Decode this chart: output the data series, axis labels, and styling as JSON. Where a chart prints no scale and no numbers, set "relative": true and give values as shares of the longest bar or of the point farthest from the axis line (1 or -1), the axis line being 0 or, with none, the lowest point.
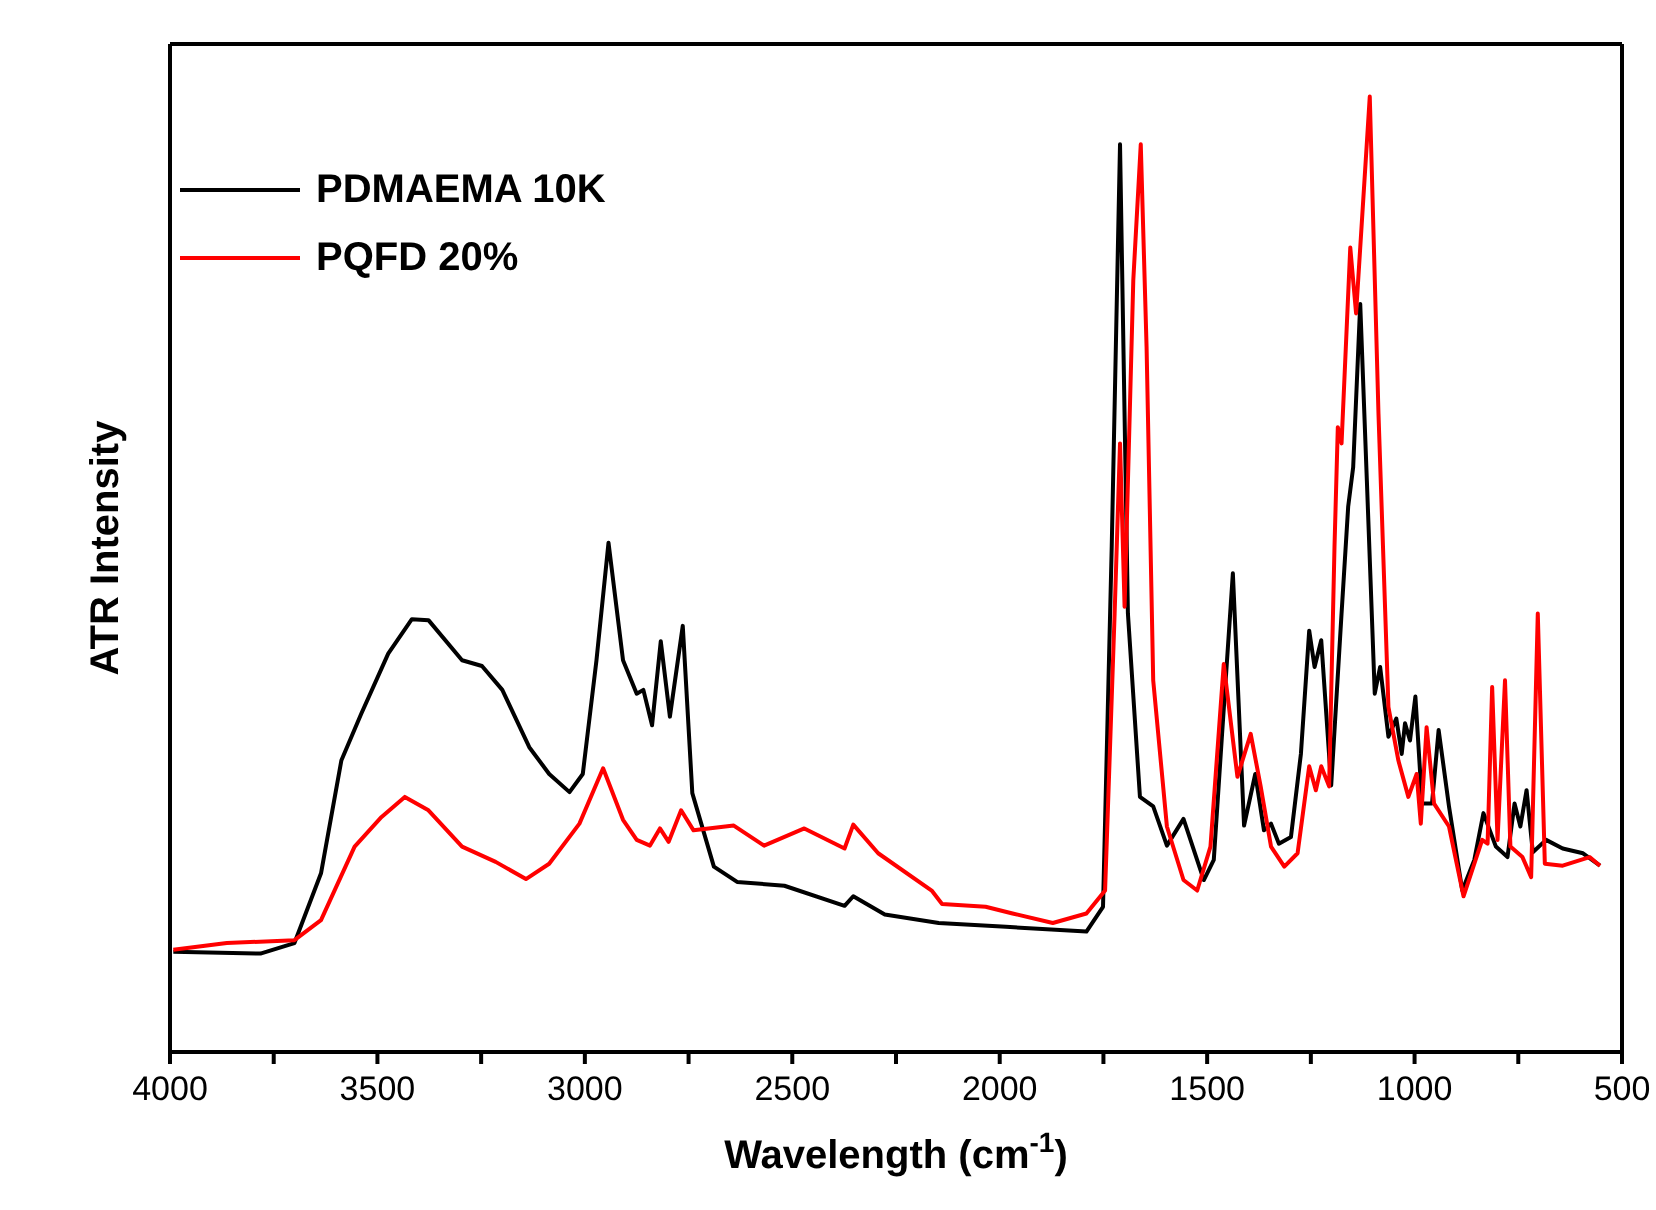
{
  "chart_data": {
    "type": "line",
    "xlabel": "Wavelength (cm$^{-1}$)",
    "ylabel": "ATR Intensity",
    "relative": true,
    "xlim": [
      4000,
      500
    ],
    "xticks": [
      4000,
      {
        "value": 3750,
        "label": null
      },
      3500,
      {
        "value": 3250,
        "label": null
      },
      3000,
      {
        "value": 2750,
        "label": null
      },
      2500,
      {
        "value": 2250,
        "label": null
      },
      2000,
      {
        "value": 1750,
        "label": null
      },
      1500,
      {
        "value": 1250,
        "label": null
      },
      1000,
      {
        "value": 750,
        "label": null
      },
      500
    ],
    "legend": "top left",
    "grid": false,
    "marker": "none",
    "line_style": "solid",
    "series": [
      {
        "name": "PDMAEMA 10K",
        "color": "#000000",
        "x": [
          3992,
          3782,
          3700,
          3636,
          3587,
          3539,
          3474,
          3417,
          3377,
          3296,
          3248,
          3199,
          3134,
          3086,
          3037,
          3005,
          2972,
          2943,
          2908,
          2875,
          2859,
          2838,
          2817,
          2795,
          2764,
          2741,
          2689,
          2633,
          2519,
          2374,
          2353,
          2277,
          2147,
          1985,
          1791,
          1751,
          1730,
          1710,
          1691,
          1662,
          1630,
          1597,
          1557,
          1508,
          1484,
          1464,
          1438,
          1411,
          1384,
          1363,
          1346,
          1327,
          1298,
          1274,
          1254,
          1241,
          1225,
          1201,
          1176,
          1160,
          1148,
          1131,
          1115,
          1096,
          1083,
          1063,
          1044,
          1031,
          1023,
          1011,
          998,
          982,
          958,
          942,
          917,
          885,
          856,
          834,
          804,
          776,
          759,
          745,
          730,
          715,
          683,
          643,
          594,
          553
        ],
        "values": [
          0.105,
          0.103,
          0.114,
          0.187,
          0.305,
          0.354,
          0.417,
          0.453,
          0.452,
          0.41,
          0.404,
          0.379,
          0.319,
          0.291,
          0.272,
          0.291,
          0.41,
          0.533,
          0.41,
          0.375,
          0.379,
          0.342,
          0.43,
          0.351,
          0.446,
          0.271,
          0.194,
          0.178,
          0.174,
          0.153,
          0.163,
          0.144,
          0.135,
          0.131,
          0.126,
          0.152,
          0.529,
          0.95,
          0.459,
          0.267,
          0.257,
          0.216,
          0.244,
          0.18,
          0.201,
          0.333,
          0.501,
          0.237,
          0.291,
          0.232,
          0.239,
          0.218,
          0.225,
          0.312,
          0.441,
          0.403,
          0.431,
          0.279,
          0.459,
          0.571,
          0.612,
          0.783,
          0.598,
          0.375,
          0.403,
          0.33,
          0.349,
          0.312,
          0.344,
          0.326,
          0.372,
          0.26,
          0.26,
          0.337,
          0.257,
          0.169,
          0.201,
          0.25,
          0.215,
          0.204,
          0.26,
          0.236,
          0.274,
          0.209,
          0.222,
          0.213,
          0.208,
          0.195
        ]
      },
      {
        "name": "PQFD 20%",
        "color": "#ff0000",
        "x": [
          3992,
          3863,
          3700,
          3636,
          3555,
          3490,
          3434,
          3377,
          3296,
          3215,
          3142,
          3086,
          3013,
          2956,
          2908,
          2875,
          2843,
          2819,
          2798,
          2768,
          2738,
          2641,
          2568,
          2471,
          2374,
          2353,
          2293,
          2164,
          2139,
          2034,
          1969,
          1872,
          1791,
          1746,
          1723,
          1710,
          1699,
          1678,
          1660,
          1646,
          1630,
          1597,
          1557,
          1524,
          1492,
          1460,
          1427,
          1395,
          1371,
          1346,
          1314,
          1282,
          1254,
          1238,
          1225,
          1206,
          1193,
          1185,
          1176,
          1155,
          1141,
          1108,
          1087,
          1063,
          1039,
          1015,
          995,
          985,
          971,
          953,
          917,
          882,
          837,
          824,
          813,
          800,
          782,
          769,
          740,
          719,
          703,
          686,
          643,
          578,
          553
        ],
        "values": [
          0.107,
          0.114,
          0.117,
          0.138,
          0.215,
          0.246,
          0.267,
          0.253,
          0.215,
          0.199,
          0.181,
          0.197,
          0.239,
          0.297,
          0.243,
          0.222,
          0.216,
          0.234,
          0.22,
          0.253,
          0.232,
          0.237,
          0.216,
          0.234,
          0.213,
          0.238,
          0.208,
          0.169,
          0.155,
          0.152,
          0.145,
          0.135,
          0.145,
          0.169,
          0.459,
          0.637,
          0.466,
          0.808,
          0.95,
          0.738,
          0.389,
          0.236,
          0.18,
          0.169,
          0.215,
          0.406,
          0.288,
          0.333,
          0.278,
          0.215,
          0.194,
          0.208,
          0.299,
          0.274,
          0.299,
          0.278,
          0.529,
          0.654,
          0.637,
          0.842,
          0.773,
          1,
          0.668,
          0.361,
          0.305,
          0.267,
          0.291,
          0.239,
          0.34,
          0.26,
          0.236,
          0.163,
          0.222,
          0.218,
          0.382,
          0.222,
          0.389,
          0.215,
          0.204,
          0.183,
          0.459,
          0.197,
          0.195,
          0.204,
          0.195
        ]
      }
    ]
  }
}
